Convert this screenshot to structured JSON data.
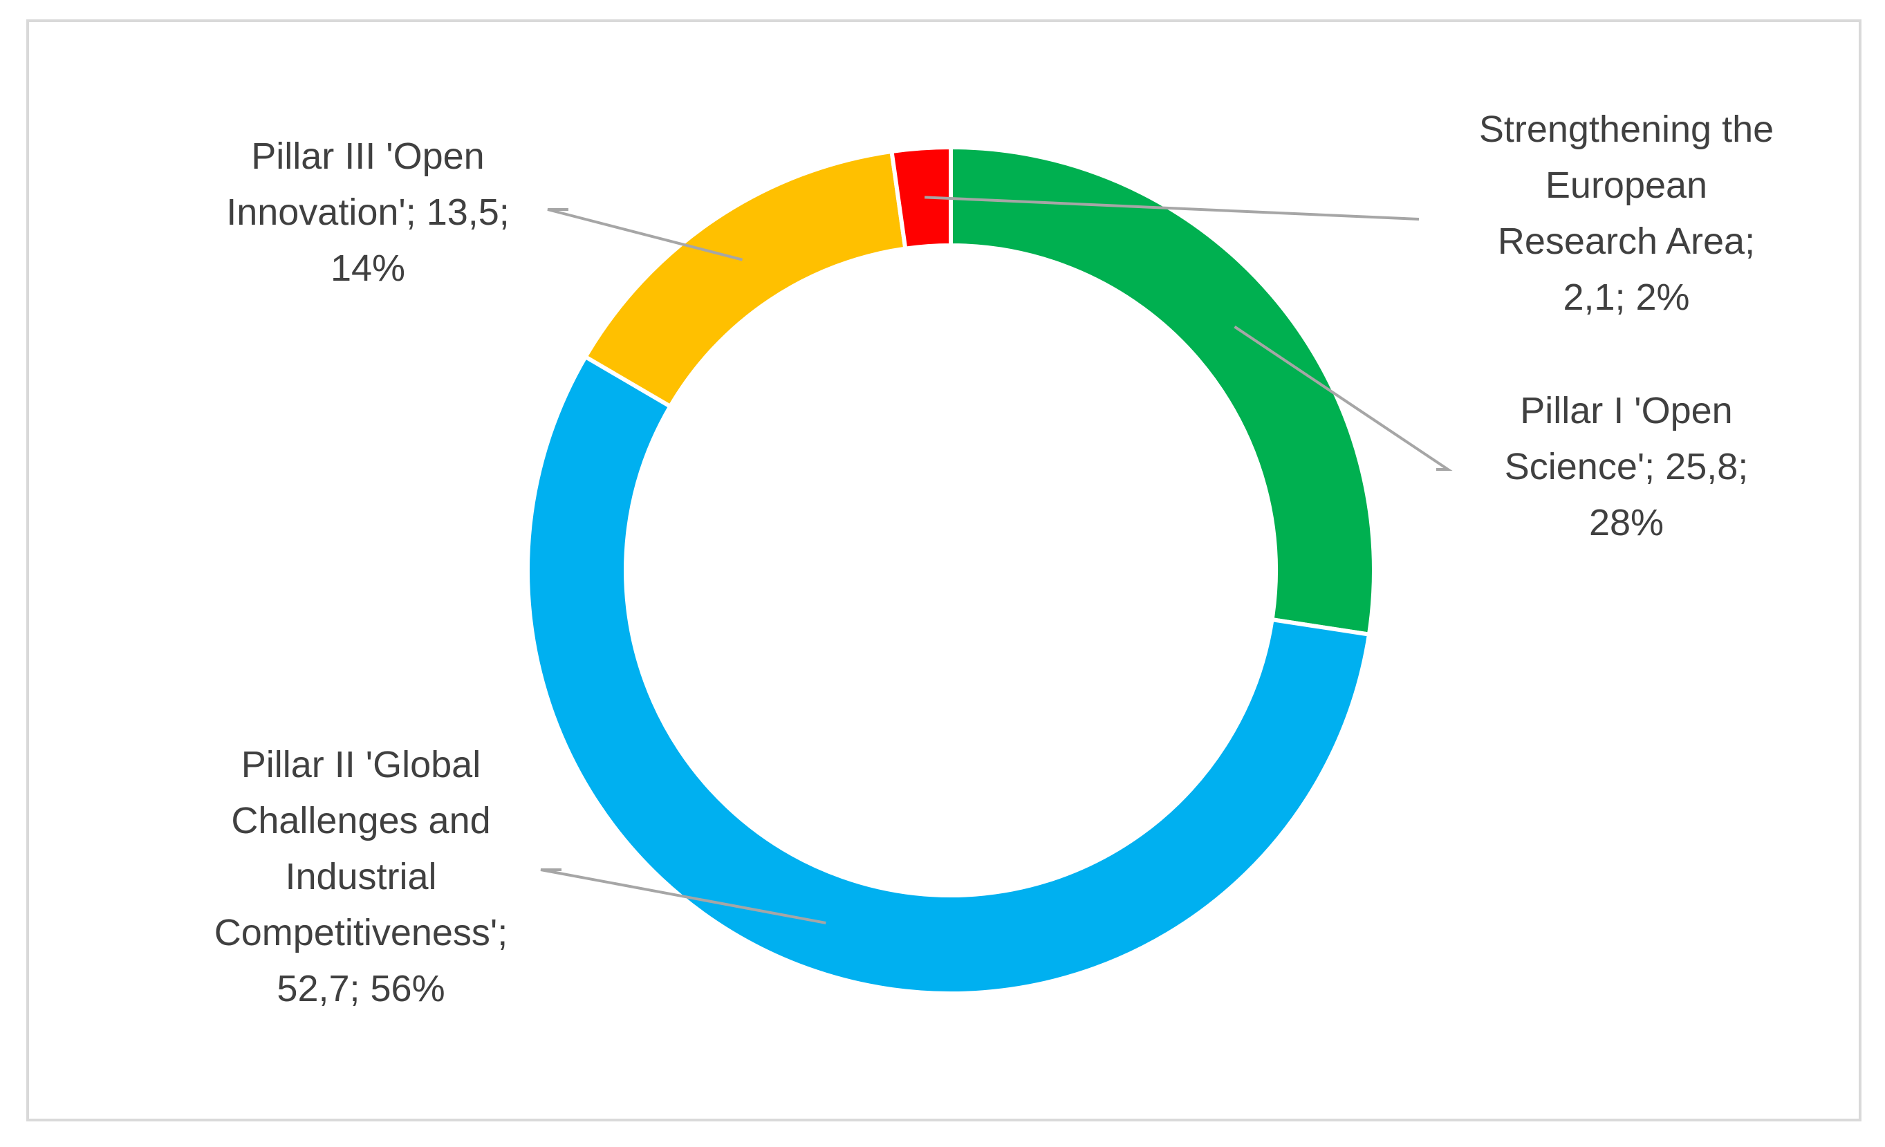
{
  "chart_data": {
    "type": "pie",
    "variant": "doughnut",
    "title": "",
    "legend": "none",
    "slices": [
      {
        "name": "Pillar I 'Open Science'",
        "value": 25.8,
        "percent": 28,
        "color": "#00b050",
        "label": "Pillar I 'Open\nScience'; 25,8;\n28%"
      },
      {
        "name": "Pillar II 'Global Challenges and Industrial Competitiveness'",
        "value": 52.7,
        "percent": 56,
        "color": "#00b0f0",
        "label": "Pillar II 'Global\nChallenges and\nIndustrial\nCompetitiveness';\n52,7; 56%"
      },
      {
        "name": "Pillar III 'Open Innovation'",
        "value": 13.5,
        "percent": 14,
        "color": "#ffc000",
        "label": "Pillar III 'Open\nInnovation'; 13,5;\n14%"
      },
      {
        "name": "Strengthening the European Research Area",
        "value": 2.1,
        "percent": 2,
        "color": "#ff0000",
        "label": "Strengthening the\nEuropean\nResearch Area;\n2,1; 2%"
      }
    ]
  }
}
